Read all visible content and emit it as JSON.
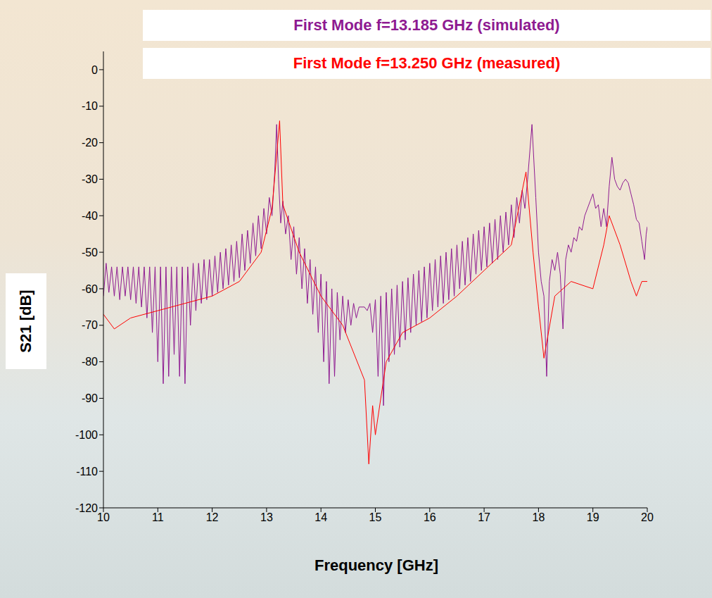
{
  "chart_data": {
    "type": "line",
    "annotations": [
      {
        "text": "First Mode f=13.185 GHz (simulated)",
        "color": "#8e1a91"
      },
      {
        "text": "First Mode f=13.250 GHz (measured)",
        "color": "#ff0000"
      }
    ],
    "x_label": "Frequency [GHz]",
    "y_label": "S21 [dB]",
    "xlim": [
      10,
      20
    ],
    "xticks": [
      10,
      11,
      12,
      13,
      14,
      15,
      16,
      17,
      18,
      19,
      20
    ],
    "ylim": [
      -120,
      5
    ],
    "yticks": [
      -120,
      -110,
      -100,
      -90,
      -80,
      -70,
      -60,
      -50,
      -40,
      -30,
      -20,
      -10,
      0
    ],
    "grid": false,
    "series": [
      {
        "color": "#8e1a91",
        "x": [
          10.0,
          10.05,
          10.1,
          10.15,
          10.2,
          10.25,
          10.3,
          10.35,
          10.4,
          10.45,
          10.5,
          10.55,
          10.6,
          10.65,
          10.7,
          10.75,
          10.8,
          10.85,
          10.9,
          10.95,
          11.0,
          11.05,
          11.1,
          11.15,
          11.2,
          11.25,
          11.3,
          11.35,
          11.4,
          11.45,
          11.5,
          11.55,
          11.6,
          11.65,
          11.7,
          11.75,
          11.8,
          11.85,
          11.9,
          11.95,
          12.0,
          12.05,
          12.1,
          12.15,
          12.2,
          12.25,
          12.3,
          12.35,
          12.4,
          12.45,
          12.5,
          12.55,
          12.6,
          12.65,
          12.7,
          12.75,
          12.8,
          12.85,
          12.9,
          12.95,
          13.0,
          13.05,
          13.1,
          13.15,
          13.185,
          13.22,
          13.26,
          13.3,
          13.35,
          13.4,
          13.45,
          13.5,
          13.55,
          13.6,
          13.65,
          13.7,
          13.75,
          13.8,
          13.85,
          13.9,
          13.95,
          14.0,
          14.05,
          14.1,
          14.15,
          14.2,
          14.25,
          14.3,
          14.35,
          14.4,
          14.45,
          14.5,
          14.55,
          14.6,
          14.65,
          14.7,
          14.8,
          14.85,
          14.9,
          14.95,
          15.0,
          15.05,
          15.1,
          15.15,
          15.2,
          15.25,
          15.3,
          15.35,
          15.4,
          15.45,
          15.5,
          15.55,
          15.6,
          15.65,
          15.7,
          15.75,
          15.8,
          15.85,
          15.9,
          15.95,
          16.0,
          16.05,
          16.1,
          16.15,
          16.2,
          16.25,
          16.3,
          16.35,
          16.4,
          16.45,
          16.5,
          16.55,
          16.6,
          16.65,
          16.7,
          16.75,
          16.8,
          16.85,
          16.9,
          16.95,
          17.0,
          17.05,
          17.1,
          17.15,
          17.2,
          17.25,
          17.3,
          17.35,
          17.4,
          17.45,
          17.5,
          17.55,
          17.6,
          17.65,
          17.7,
          17.75,
          17.8,
          17.88,
          17.95,
          18.0,
          18.05,
          18.1,
          18.15,
          18.2,
          18.25,
          18.3,
          18.35,
          18.4,
          18.45,
          18.5,
          18.55,
          18.6,
          18.65,
          18.7,
          18.75,
          18.8,
          18.85,
          18.9,
          18.95,
          19.0,
          19.05,
          19.1,
          19.15,
          19.2,
          19.25,
          19.3,
          19.35,
          19.4,
          19.45,
          19.5,
          19.55,
          19.6,
          19.65,
          19.7,
          19.75,
          19.8,
          19.85,
          19.9,
          19.95,
          19.98,
          20.0
        ],
        "values": [
          -62,
          -53,
          -61,
          -54,
          -62,
          -54,
          -63,
          -54,
          -62,
          -54,
          -63,
          -54,
          -64,
          -54,
          -65,
          -54,
          -68,
          -54,
          -72,
          -54,
          -80,
          -54,
          -86,
          -54,
          -84,
          -54,
          -78,
          -54,
          -84,
          -54,
          -86,
          -54,
          -70,
          -53,
          -66,
          -53,
          -64,
          -52,
          -63,
          -52,
          -62,
          -51,
          -61,
          -50,
          -60,
          -49,
          -59,
          -48,
          -58,
          -47,
          -57,
          -45,
          -55,
          -44,
          -53,
          -42,
          -51,
          -40,
          -49,
          -38,
          -45,
          -35,
          -40,
          -28,
          -15,
          -30,
          -42,
          -36,
          -45,
          -40,
          -52,
          -43,
          -56,
          -46,
          -60,
          -49,
          -64,
          -52,
          -67,
          -54,
          -72,
          -56,
          -80,
          -58,
          -86,
          -60,
          -84,
          -61,
          -74,
          -62,
          -72,
          -63,
          -70,
          -64,
          -68,
          -65,
          -65,
          -66,
          -64,
          -72,
          -63,
          -84,
          -62,
          -92,
          -61,
          -80,
          -60,
          -78,
          -59,
          -76,
          -58,
          -74,
          -57,
          -72,
          -56,
          -70,
          -55,
          -69,
          -54,
          -68,
          -53,
          -66,
          -52,
          -65,
          -51,
          -64,
          -50,
          -63,
          -49,
          -62,
          -48,
          -60,
          -47,
          -59,
          -46,
          -58,
          -45,
          -56,
          -44,
          -55,
          -43,
          -54,
          -42,
          -53,
          -41,
          -52,
          -40,
          -50,
          -39,
          -48,
          -37,
          -46,
          -35,
          -42,
          -33,
          -38,
          -30,
          -15,
          -35,
          -50,
          -58,
          -62,
          -84,
          -58,
          -52,
          -55,
          -50,
          -56,
          -71,
          -52,
          -48,
          -50,
          -46,
          -47,
          -43,
          -44,
          -40,
          -38,
          -36,
          -34,
          -38,
          -37,
          -43,
          -38,
          -43,
          -32,
          -24,
          -30,
          -32,
          -33,
          -31,
          -30,
          -31,
          -34,
          -37,
          -41,
          -42,
          -47,
          -52,
          -45,
          -43
        ]
      },
      {
        "color": "#ff0000",
        "x": [
          10.0,
          10.2,
          10.5,
          11.0,
          11.5,
          12.0,
          12.5,
          12.9,
          13.1,
          13.24,
          13.3,
          13.6,
          14.0,
          14.4,
          14.8,
          14.88,
          14.95,
          15.0,
          15.2,
          15.5,
          16.0,
          16.5,
          17.0,
          17.5,
          17.77,
          17.9,
          18.0,
          18.1,
          18.3,
          18.6,
          19.0,
          19.2,
          19.3,
          19.5,
          19.7,
          19.8,
          19.9,
          20.0
        ],
        "values": [
          -67,
          -71,
          -68,
          -66,
          -64,
          -62,
          -58,
          -50,
          -38,
          -14,
          -37,
          -50,
          -62,
          -70,
          -85,
          -108,
          -92,
          -100,
          -80,
          -72,
          -68,
          -62,
          -55,
          -48,
          -28,
          -50,
          -65,
          -79,
          -62,
          -58,
          -60,
          -48,
          -40,
          -48,
          -58,
          -62,
          -58,
          -58
        ]
      }
    ]
  }
}
